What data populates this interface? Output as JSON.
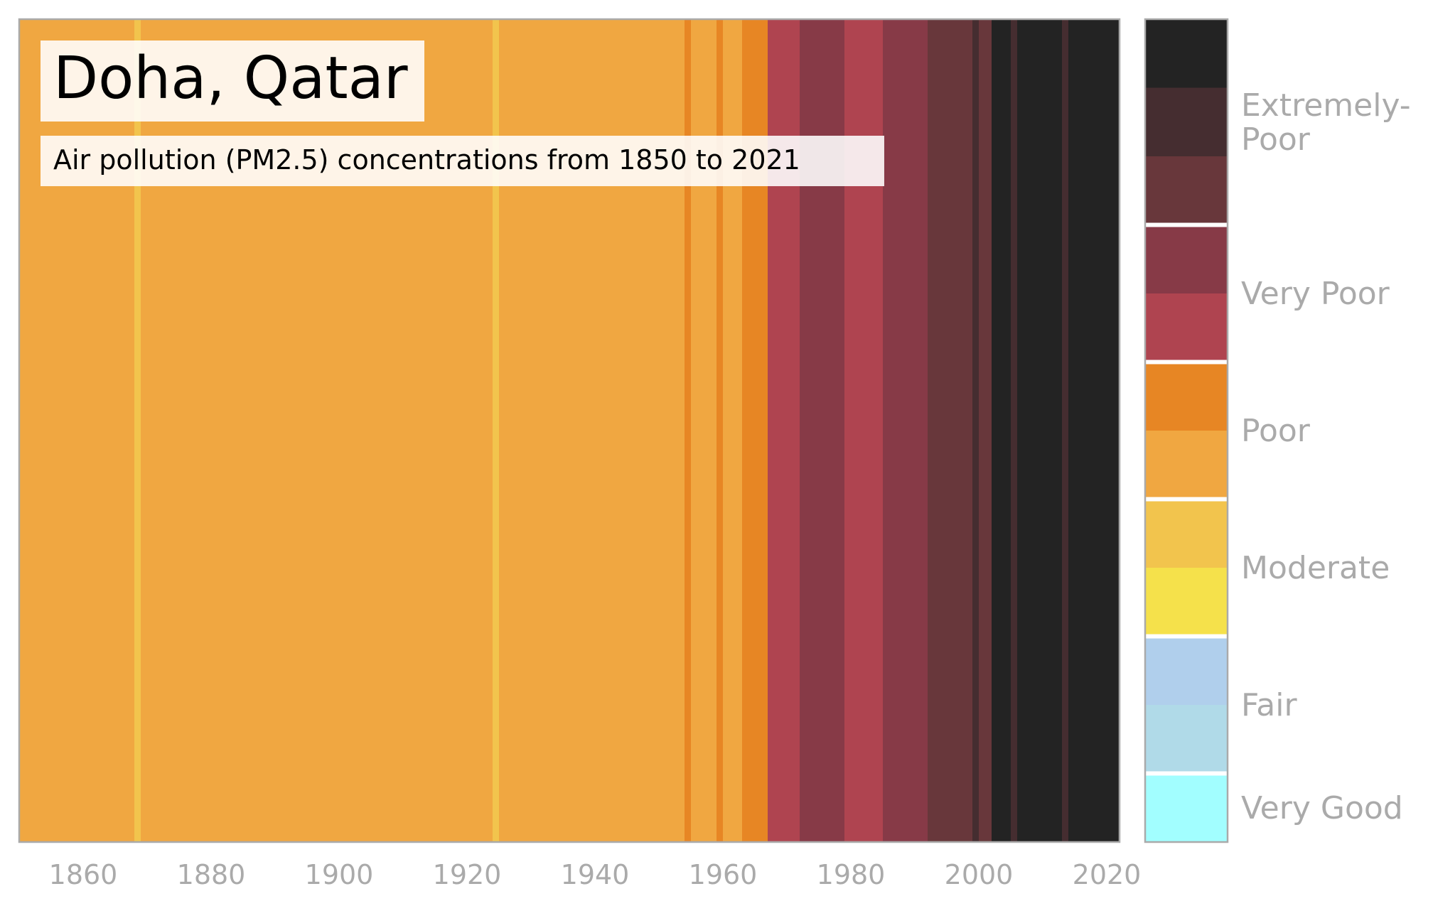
{
  "chart_data": {
    "type": "heatmap",
    "title": "Doha, Qatar",
    "subtitle": "Air pollution (PM2.5) concentrations from 1850 to 2021",
    "x_range": [
      1850,
      2022
    ],
    "x_ticks": [
      "1860",
      "1880",
      "1900",
      "1920",
      "1940",
      "1960",
      "1980",
      "2000",
      "2020"
    ],
    "grid": false,
    "legend_position": "right",
    "colors": {
      "very_good": "#a2feff",
      "fair_1": "#b0dae8",
      "fair_2": "#b0cfec",
      "moderate_1": "#f5e14b",
      "moderate_2": "#f2c44d",
      "poor_1": "#f0a741",
      "poor_2": "#e78624",
      "very_poor_1": "#af4450",
      "very_poor_2": "#873a47",
      "extremely_poor_1": "#68373b",
      "extremely_poor_2": "#452d30",
      "extremely_poor_3": "#232323"
    },
    "year_categories": [
      {
        "start": 1850,
        "end": 1868,
        "level": "poor_1"
      },
      {
        "start": 1868,
        "end": 1869,
        "level": "moderate_2"
      },
      {
        "start": 1869,
        "end": 1924,
        "level": "poor_1"
      },
      {
        "start": 1924,
        "end": 1925,
        "level": "moderate_2"
      },
      {
        "start": 1925,
        "end": 1954,
        "level": "poor_1"
      },
      {
        "start": 1954,
        "end": 1955,
        "level": "poor_2"
      },
      {
        "start": 1955,
        "end": 1959,
        "level": "poor_1"
      },
      {
        "start": 1959,
        "end": 1960,
        "level": "poor_2"
      },
      {
        "start": 1960,
        "end": 1963,
        "level": "poor_1"
      },
      {
        "start": 1963,
        "end": 1967,
        "level": "poor_2"
      },
      {
        "start": 1967,
        "end": 1972,
        "level": "very_poor_1"
      },
      {
        "start": 1972,
        "end": 1979,
        "level": "very_poor_2"
      },
      {
        "start": 1979,
        "end": 1985,
        "level": "very_poor_1"
      },
      {
        "start": 1985,
        "end": 1992,
        "level": "very_poor_2"
      },
      {
        "start": 1992,
        "end": 1999,
        "level": "extremely_poor_1"
      },
      {
        "start": 1999,
        "end": 2000,
        "level": "extremely_poor_2"
      },
      {
        "start": 2000,
        "end": 2002,
        "level": "extremely_poor_1"
      },
      {
        "start": 2002,
        "end": 2005,
        "level": "extremely_poor_3"
      },
      {
        "start": 2005,
        "end": 2006,
        "level": "extremely_poor_2"
      },
      {
        "start": 2006,
        "end": 2013,
        "level": "extremely_poor_3"
      },
      {
        "start": 2013,
        "end": 2014,
        "level": "extremely_poor_2"
      },
      {
        "start": 2014,
        "end": 2022,
        "level": "extremely_poor_3"
      }
    ],
    "legend": {
      "swatches_top_to_bottom": [
        "extremely_poor_3",
        "extremely_poor_2",
        "extremely_poor_1",
        "very_poor_2",
        "very_poor_1",
        "poor_2",
        "poor_1",
        "moderate_2",
        "moderate_1",
        "fair_2",
        "fair_1",
        "very_good"
      ],
      "labels": [
        {
          "text_lines": [
            "Extremely-",
            "Poor"
          ],
          "group": "extremely_poor"
        },
        {
          "text_lines": [
            "Very Poor"
          ],
          "group": "very_poor"
        },
        {
          "text_lines": [
            "Poor"
          ],
          "group": "poor"
        },
        {
          "text_lines": [
            "Moderate"
          ],
          "group": "moderate"
        },
        {
          "text_lines": [
            "Fair"
          ],
          "group": "fair"
        },
        {
          "text_lines": [
            "Very Good"
          ],
          "group": "very_good"
        }
      ]
    }
  }
}
